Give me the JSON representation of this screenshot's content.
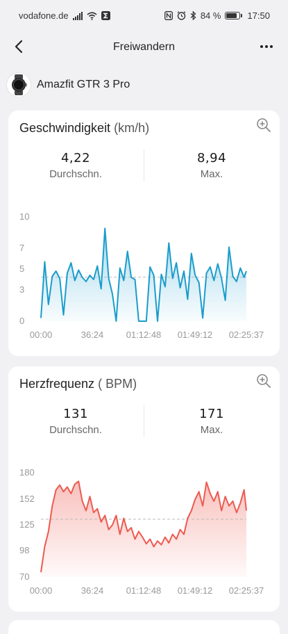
{
  "status": {
    "carrier": "vodafone.de",
    "battery_pct": "84 %",
    "battery_level": 0.84,
    "time": "17:50"
  },
  "nav": {
    "title": "Freiwandern"
  },
  "device": {
    "name": "Amazfit GTR 3 Pro"
  },
  "speed": {
    "title": "Geschwindigkeit",
    "unit": "(km/h)",
    "avg_value": "4,22",
    "avg_label": "Durchschn.",
    "max_value": "8,94",
    "max_label": "Max."
  },
  "heart": {
    "title": "Herzfrequenz",
    "unit": "( BPM)",
    "avg_value": "131",
    "avg_label": "Durchschn.",
    "max_value": "171",
    "max_label": "Max."
  },
  "chart_data": [
    {
      "type": "area",
      "ylabel": "",
      "xlabel": "",
      "y_ticks": [
        "10",
        "7",
        "5",
        "3",
        "0"
      ],
      "y_tick_values": [
        10,
        7,
        5,
        3,
        0
      ],
      "x_ticks": [
        "00:00",
        "36:24",
        "01:12:48",
        "01:49:12",
        "02:25:37"
      ],
      "ylim": [
        0,
        10
      ],
      "x_range_seconds": [
        0,
        8737
      ],
      "average_line": 4.22,
      "color": "#1a9ccc",
      "grid": false,
      "series": [
        {
          "x": [
            0,
            160,
            320,
            480,
            640,
            800,
            960,
            1120,
            1280,
            1440,
            1600,
            1760,
            1920,
            2080,
            2240,
            2400,
            2560,
            2720,
            2880,
            3040,
            3200,
            3360,
            3520,
            3680,
            3840,
            4000,
            4160,
            4320,
            4480,
            4640,
            4800,
            4960,
            5120,
            5280,
            5440,
            5600,
            5760,
            5920,
            6080,
            6240,
            6400,
            6560,
            6720,
            6880,
            7040,
            7200,
            7360,
            7520,
            7680,
            7840,
            8000,
            8160,
            8320,
            8480,
            8640,
            8737
          ],
          "values": [
            0.3,
            5.7,
            1.6,
            4.3,
            4.8,
            4.1,
            0.6,
            4.6,
            5.6,
            3.9,
            4.9,
            4.2,
            3.8,
            4.4,
            4.0,
            5.3,
            3.1,
            8.9,
            4.1,
            2.6,
            0.0,
            5.1,
            3.9,
            6.7,
            4.2,
            4.0,
            0.0,
            0.0,
            0.0,
            5.2,
            4.4,
            0.0,
            4.5,
            3.3,
            7.5,
            4.1,
            5.6,
            3.2,
            4.8,
            2.1,
            6.5,
            4.4,
            3.7,
            0.3,
            4.6,
            5.2,
            3.9,
            5.5,
            4.1,
            2.0,
            7.1,
            4.3,
            3.8,
            5.1,
            4.2,
            4.8
          ]
        }
      ]
    },
    {
      "type": "area",
      "ylabel": "",
      "xlabel": "",
      "y_ticks": [
        "180",
        "152",
        "125",
        "98",
        "70"
      ],
      "y_tick_values": [
        180,
        152,
        125,
        98,
        70
      ],
      "x_ticks": [
        "00:00",
        "36:24",
        "01:12:48",
        "01:49:12",
        "02:25:37"
      ],
      "ylim": [
        70,
        180
      ],
      "x_range_seconds": [
        0,
        8737
      ],
      "average_line": 131,
      "color": "#ec5a50",
      "grid": false,
      "series": [
        {
          "x": [
            0,
            160,
            320,
            480,
            640,
            800,
            960,
            1120,
            1280,
            1440,
            1600,
            1760,
            1920,
            2080,
            2240,
            2400,
            2560,
            2720,
            2880,
            3040,
            3200,
            3360,
            3520,
            3680,
            3840,
            4000,
            4160,
            4320,
            4480,
            4640,
            4800,
            4960,
            5120,
            5280,
            5440,
            5600,
            5760,
            5920,
            6080,
            6240,
            6400,
            6560,
            6720,
            6880,
            7040,
            7200,
            7360,
            7520,
            7680,
            7840,
            8000,
            8160,
            8320,
            8480,
            8640,
            8737
          ],
          "values": [
            75,
            102,
            118,
            145,
            162,
            167,
            160,
            165,
            158,
            168,
            171,
            150,
            140,
            155,
            138,
            142,
            128,
            135,
            120,
            125,
            135,
            115,
            132,
            118,
            122,
            110,
            118,
            112,
            105,
            110,
            102,
            108,
            104,
            112,
            106,
            115,
            110,
            120,
            115,
            132,
            140,
            152,
            160,
            145,
            170,
            158,
            150,
            160,
            140,
            155,
            145,
            150,
            138,
            148,
            162,
            140
          ]
        }
      ]
    }
  ]
}
